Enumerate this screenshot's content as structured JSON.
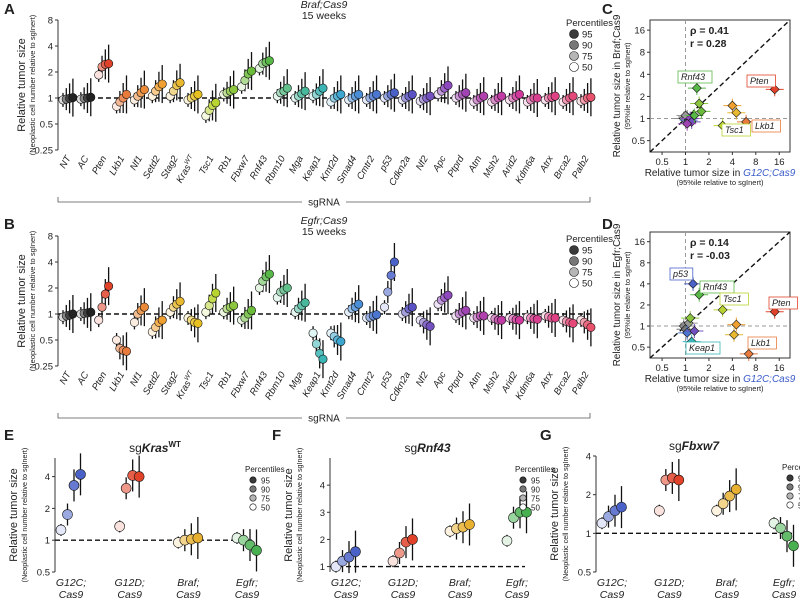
{
  "percentile_legend": {
    "title": "Percentiles",
    "entries": [
      "95",
      "90",
      "75",
      "50"
    ],
    "shades": [
      "#3a3a3a",
      "#777777",
      "#b5b5b5",
      "#ffffff"
    ]
  },
  "chart_data": [
    {
      "panel": "A",
      "type": "scatter",
      "title": "Braf;Cas9",
      "subtitle": "15 weeks",
      "ylabel": "Relative tumor size",
      "ylabel_sub": "(Neoplastic cell number relative to sgInert)",
      "xlabel": "sgRNA",
      "yscale": "log",
      "ylim": [
        0.25,
        8
      ],
      "yticks": [
        "0.25",
        "0.5",
        "1",
        "2",
        "4",
        "8"
      ],
      "ytick_values": [
        0.25,
        0.5,
        1,
        2,
        4,
        8
      ],
      "percentiles": [
        "50",
        "75",
        "90",
        "95"
      ],
      "categories": [
        "NT",
        "AC",
        "Pten",
        "Lkb1",
        "Nf1",
        "Setd2",
        "Stag2",
        "Kras^WT",
        "Tsc1",
        "Rb1",
        "Fbxw7",
        "Rnf43",
        "Rbm10",
        "Mga",
        "Keap1",
        "Kmt2d",
        "Smad4",
        "Cmtr2",
        "p53",
        "Cdkn2a",
        "Nf2",
        "Apc",
        "Ptprd",
        "Atm",
        "Msh2",
        "Arid2",
        "Kdm6a",
        "Atrx",
        "Brca2",
        "Palb2"
      ],
      "colors": [
        "#222222",
        "#222222",
        "#e0432a",
        "#e87a3c",
        "#ea8a38",
        "#f0a030",
        "#e8b830",
        "#e8c020",
        "#b8d430",
        "#8cc63f",
        "#6cbc3c",
        "#58b847",
        "#62c08c",
        "#48b89c",
        "#3ab4b4",
        "#3ca6d0",
        "#4a8ed8",
        "#4a76d0",
        "#4a62c8",
        "#5a52c4",
        "#7250c0",
        "#8c48bc",
        "#a044b4",
        "#b040ac",
        "#c03ca4",
        "#d0389c",
        "#d84090",
        "#e04084",
        "#e44878",
        "#e8506c"
      ],
      "values": [
        [
          0.95,
          0.97,
          0.99,
          1.01
        ],
        [
          0.97,
          0.99,
          1.0,
          1.02
        ],
        [
          1.85,
          2.3,
          2.45,
          2.5
        ],
        [
          0.8,
          0.9,
          1.0,
          1.1
        ],
        [
          0.95,
          1.05,
          1.15,
          1.25
        ],
        [
          1.05,
          1.2,
          1.35,
          1.45
        ],
        [
          1.05,
          1.2,
          1.4,
          1.5
        ],
        [
          0.95,
          1.0,
          1.05,
          1.1
        ],
        [
          0.62,
          0.72,
          0.82,
          0.88
        ],
        [
          1.1,
          1.15,
          1.2,
          1.25
        ],
        [
          1.35,
          1.6,
          1.9,
          2.05
        ],
        [
          2.2,
          2.5,
          2.6,
          2.7
        ],
        [
          1.05,
          1.15,
          1.2,
          1.3
        ],
        [
          1.0,
          1.05,
          1.12,
          1.2
        ],
        [
          1.05,
          1.1,
          1.2,
          1.3
        ],
        [
          0.9,
          1.0,
          1.05,
          1.1
        ],
        [
          0.95,
          1.0,
          1.05,
          1.1
        ],
        [
          0.95,
          1.0,
          1.05,
          1.1
        ],
        [
          1.0,
          1.05,
          1.1,
          1.15
        ],
        [
          0.95,
          1.0,
          1.05,
          1.1
        ],
        [
          0.92,
          0.97,
          1.0,
          1.05
        ],
        [
          1.1,
          1.2,
          1.3,
          1.4
        ],
        [
          1.0,
          1.05,
          1.1,
          1.15
        ],
        [
          0.9,
          0.95,
          1.0,
          1.05
        ],
        [
          0.9,
          0.95,
          1.0,
          1.05
        ],
        [
          0.95,
          1.0,
          1.05,
          1.1
        ],
        [
          0.9,
          0.95,
          1.0,
          1.0
        ],
        [
          0.95,
          1.0,
          1.02,
          1.05
        ],
        [
          0.9,
          0.95,
          1.0,
          1.05
        ],
        [
          0.92,
          0.95,
          1.0,
          1.02
        ]
      ]
    },
    {
      "panel": "B",
      "type": "scatter",
      "title": "Egfr;Cas9",
      "subtitle": "15 weeks",
      "ylabel": "Relative tumor size",
      "ylabel_sub": "(Neoplastic cell number relative to sgInert)",
      "xlabel": "sgRNA",
      "yscale": "log",
      "ylim": [
        0.25,
        8
      ],
      "yticks": [
        "0.25",
        "0.5",
        "1",
        "2",
        "4",
        "8"
      ],
      "ytick_values": [
        0.25,
        0.5,
        1,
        2,
        4,
        8
      ],
      "percentiles": [
        "50",
        "75",
        "90",
        "95"
      ],
      "categories": [
        "NT",
        "AC",
        "Pten",
        "Lkb1",
        "Nf1",
        "Setd2",
        "Stag2",
        "Kras^WT",
        "Tsc1",
        "Rb1",
        "Fbxw7",
        "Rnf43",
        "Rbm10",
        "Mga",
        "Keap1",
        "Kmt2d",
        "Smad4",
        "Cmtr2",
        "p53",
        "Cdkn2a",
        "Nf2",
        "Apc",
        "Ptprd",
        "Atm",
        "Msh2",
        "Arid2",
        "Kdm6a",
        "Atrx",
        "Brca2",
        "Palb2"
      ],
      "colors": [
        "#222222",
        "#222222",
        "#e0432a",
        "#e87a3c",
        "#ea8a38",
        "#f0a030",
        "#e8b830",
        "#e8c020",
        "#b8d430",
        "#8cc63f",
        "#6cbc3c",
        "#58b847",
        "#62c08c",
        "#48b89c",
        "#3ab4b4",
        "#3ca6d0",
        "#4a8ed8",
        "#4a76d0",
        "#4a62c8",
        "#5a52c4",
        "#7250c0",
        "#8c48bc",
        "#a044b4",
        "#b040ac",
        "#c03ca4",
        "#d0389c",
        "#d84090",
        "#e04084",
        "#e44878",
        "#e8506c"
      ],
      "values": [
        [
          0.92,
          0.95,
          0.97,
          1.0
        ],
        [
          1.0,
          1.02,
          1.03,
          1.05
        ],
        [
          0.85,
          1.2,
          1.7,
          2.1
        ],
        [
          0.5,
          0.4,
          0.38,
          0.37
        ],
        [
          0.8,
          1.0,
          1.1,
          1.2
        ],
        [
          0.62,
          0.7,
          0.8,
          0.85
        ],
        [
          1.05,
          1.2,
          1.3,
          1.4
        ],
        [
          0.9,
          0.85,
          0.8,
          0.78
        ],
        [
          1.05,
          1.25,
          1.5,
          1.75
        ],
        [
          1.05,
          1.15,
          1.2,
          1.25
        ],
        [
          0.85,
          0.9,
          1.0,
          1.1
        ],
        [
          2.0,
          2.4,
          2.7,
          2.9
        ],
        [
          1.55,
          1.8,
          1.9,
          2.0
        ],
        [
          1.05,
          1.15,
          1.25,
          1.35
        ],
        [
          0.6,
          0.45,
          0.35,
          0.3
        ],
        [
          0.6,
          0.55,
          0.5,
          0.48
        ],
        [
          1.05,
          1.15,
          1.2,
          1.3
        ],
        [
          0.9,
          0.92,
          0.95,
          0.98
        ],
        [
          1.2,
          1.8,
          2.8,
          4.0
        ],
        [
          1.0,
          1.05,
          1.15,
          1.2
        ],
        [
          0.85,
          0.8,
          0.75,
          0.72
        ],
        [
          1.3,
          1.45,
          1.55,
          1.65
        ],
        [
          0.95,
          1.0,
          1.05,
          1.1
        ],
        [
          0.9,
          0.92,
          0.95,
          0.95
        ],
        [
          0.9,
          0.88,
          0.85,
          0.85
        ],
        [
          0.9,
          0.88,
          0.86,
          0.85
        ],
        [
          0.92,
          0.9,
          0.88,
          0.87
        ],
        [
          0.95,
          0.93,
          0.9,
          0.9
        ],
        [
          0.85,
          0.82,
          0.8,
          0.78
        ],
        [
          0.85,
          0.8,
          0.75,
          0.7
        ]
      ]
    },
    {
      "panel": "C",
      "type": "scatter",
      "xlabel": "Relative tumor size in G12C;Cas9",
      "xlabel_sub": "(95%ile relative to sgInert)",
      "ylabel": "Relative tumor size in Braf;Cas9",
      "ylabel_sub": "(95%ile relative to sgInert)",
      "xscale": "log",
      "yscale": "log",
      "xlim": [
        0.35,
        22
      ],
      "ylim": [
        0.35,
        22
      ],
      "xticks": [
        "0.5",
        "1",
        "2",
        "4",
        "8",
        "16"
      ],
      "xtick_values": [
        0.5,
        1,
        2,
        4,
        8,
        16
      ],
      "yticks": [
        "0.5",
        "1",
        "2",
        "4",
        "8",
        "16"
      ],
      "ytick_values": [
        0.5,
        1,
        2,
        4,
        8,
        16
      ],
      "stats": {
        "rho": "ρ = 0.41",
        "r": "r = 0.28"
      },
      "points": [
        [
          0.95,
          1.0,
          "#888888"
        ],
        [
          1.05,
          1.05,
          "#777777"
        ],
        [
          1.1,
          0.95,
          "#4a76d0"
        ],
        [
          1.0,
          1.1,
          "#999999"
        ],
        [
          1.15,
          1.0,
          "#8c48bc"
        ],
        [
          1.2,
          0.9,
          "#7250c0"
        ],
        [
          1.05,
          0.85,
          "#a044b4"
        ],
        [
          1.3,
          1.1,
          "#58b847"
        ],
        [
          1.6,
          1.25,
          "#6cbc3c"
        ],
        [
          1.5,
          1.6,
          "#8cc63f"
        ],
        [
          1.4,
          2.6,
          "#58b847"
        ],
        [
          4.0,
          1.5,
          "#f0a030"
        ],
        [
          4.5,
          1.2,
          "#e8b830"
        ],
        [
          3.0,
          0.8,
          "#b8d430"
        ],
        [
          6.0,
          0.9,
          "#e87a3c"
        ],
        [
          14.0,
          2.5,
          "#e0432a"
        ]
      ],
      "labels": [
        "Rnf43",
        "Pten",
        "Tsc1",
        "Lkb1"
      ]
    },
    {
      "panel": "D",
      "type": "scatter",
      "xlabel": "Relative tumor size in G12C;Cas9",
      "xlabel_sub": "(95%ile relative to sgInert)",
      "ylabel": "Relative tumor size in Egfr;Cas9",
      "ylabel_sub": "(95%ile relative to sgInert)",
      "xscale": "log",
      "yscale": "log",
      "xlim": [
        0.35,
        22
      ],
      "ylim": [
        0.35,
        22
      ],
      "xticks": [
        "0.5",
        "1",
        "2",
        "4",
        "8",
        "16"
      ],
      "xtick_values": [
        0.5,
        1,
        2,
        4,
        8,
        16
      ],
      "yticks": [
        "0.5",
        "1",
        "2",
        "4",
        "8",
        "16"
      ],
      "ytick_values": [
        0.5,
        1,
        2,
        4,
        8,
        16
      ],
      "stats": {
        "rho": "ρ = 0.14",
        "r": "r = -0.03"
      },
      "points": [
        [
          0.95,
          1.0,
          "#888888"
        ],
        [
          1.0,
          0.9,
          "#777777"
        ],
        [
          1.1,
          1.1,
          "#999999"
        ],
        [
          1.05,
          0.8,
          "#4a76d0"
        ],
        [
          1.15,
          1.3,
          "#8cc63f"
        ],
        [
          1.2,
          0.6,
          "#3ab4b4"
        ],
        [
          1.25,
          4.0,
          "#4a62c8"
        ],
        [
          1.5,
          2.8,
          "#58b847"
        ],
        [
          1.3,
          0.85,
          "#7250c0"
        ],
        [
          3.0,
          1.7,
          "#b8d430"
        ],
        [
          4.5,
          1.05,
          "#f0a030"
        ],
        [
          4.2,
          0.75,
          "#e8b830"
        ],
        [
          6.5,
          0.4,
          "#e87a3c"
        ],
        [
          14.0,
          1.6,
          "#e0432a"
        ]
      ],
      "labels": [
        "p53",
        "Rnf43",
        "Tsc1",
        "Pten",
        "Keap1",
        "Lkb1"
      ]
    },
    {
      "panel": "E",
      "type": "scatter",
      "title_prefix": "sg",
      "title_gene": "Kras",
      "title_sup": "WT",
      "ylabel": "Relative tumor size",
      "ylabel_sub": "(Neoplastic cell number relative to sgInert)",
      "yscale": "log",
      "ylim": [
        0.5,
        6
      ],
      "yticks": [
        "0.5",
        "1",
        "2",
        "4"
      ],
      "ytick_values": [
        0.5,
        1,
        2,
        4
      ],
      "categories": [
        "G12C; Cas9",
        "G12D; Cas9",
        "Braf; Cas9",
        "Egfr; Cas9"
      ],
      "category_colors": [
        "#3a5cc8",
        "#e03a3a",
        "#333333",
        "#333333"
      ],
      "series_colors": [
        "#4a62c8",
        "#e0432a",
        "#e8b030",
        "#48b050"
      ],
      "percentiles": [
        "50",
        "75",
        "90",
        "95"
      ],
      "values": [
        [
          1.25,
          1.75,
          3.3,
          4.2
        ],
        [
          1.35,
          3.1,
          4.1,
          4.0
        ],
        [
          0.95,
          1.0,
          1.02,
          1.05
        ],
        [
          1.05,
          1.0,
          0.9,
          0.8
        ]
      ]
    },
    {
      "panel": "F",
      "type": "scatter",
      "title_prefix": "sg",
      "title_gene": "Rnf43",
      "title_sup": "",
      "ylabel": "Relative tumor size",
      "ylabel_sub": "(Neoplastic cell number relative to sgInert)",
      "yscale": "linear",
      "ylim": [
        0.8,
        5
      ],
      "yticks": [
        "1",
        "2",
        "3",
        "4"
      ],
      "ytick_values": [
        1,
        2,
        3,
        4
      ],
      "categories": [
        "G12C; Cas9",
        "G12D; Cas9",
        "Braf; Cas9",
        "Egfr; Cas9"
      ],
      "category_colors": [
        "#3a5cc8",
        "#e03a3a",
        "#333333",
        "#333333"
      ],
      "series_colors": [
        "#4a62c8",
        "#e0432a",
        "#e8b030",
        "#48b050"
      ],
      "percentiles": [
        "50",
        "75",
        "90",
        "95"
      ],
      "values": [
        [
          1.0,
          1.2,
          1.35,
          1.55
        ],
        [
          1.2,
          1.5,
          1.9,
          2.0
        ],
        [
          2.3,
          2.4,
          2.45,
          2.55
        ],
        [
          1.95,
          2.8,
          3.0,
          3.0
        ]
      ]
    },
    {
      "panel": "G",
      "type": "scatter",
      "title_prefix": "sg",
      "title_gene": "Fbxw7",
      "title_sup": "",
      "ylabel": "Relative tumor size",
      "ylabel_sub": "(Neoplastic cell number relative to sgInert)",
      "yscale": "log",
      "ylim": [
        0.5,
        4
      ],
      "yticks": [
        "0.5",
        "1",
        "2",
        "4"
      ],
      "ytick_values": [
        0.5,
        1,
        2,
        4
      ],
      "categories": [
        "G12C; Cas9",
        "G12D; Cas9",
        "Braf; Cas9",
        "Egfr; Cas9"
      ],
      "category_colors": [
        "#3a5cc8",
        "#e03a3a",
        "#333333",
        "#333333"
      ],
      "series_colors": [
        "#4a62c8",
        "#e0432a",
        "#e8b030",
        "#48b050"
      ],
      "percentiles": [
        "50",
        "75",
        "90",
        "95"
      ],
      "values": [
        [
          1.2,
          1.35,
          1.5,
          1.6
        ],
        [
          1.5,
          2.6,
          2.7,
          2.6
        ],
        [
          1.5,
          1.7,
          1.95,
          2.2
        ],
        [
          1.2,
          1.1,
          0.95,
          0.8
        ]
      ]
    }
  ]
}
